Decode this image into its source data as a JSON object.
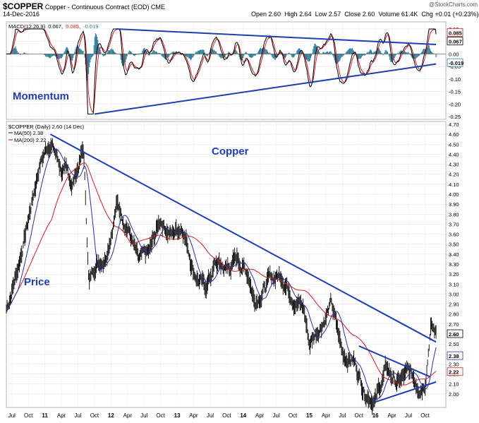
{
  "header": {
    "symbol": "$COPPER",
    "description": "Copper - Continuous Contract (EOD) CME",
    "date": "14-Dec-2016",
    "watermark": "@StockCharts.com",
    "open_label": "Open",
    "open": "2.60",
    "high_label": "High",
    "high": "2.64",
    "low_label": "Low",
    "low": "2.57",
    "close_label": "Close",
    "close": "2.60",
    "volume_label": "Volume",
    "volume": "61.4K",
    "chg_label": "Chg",
    "chg": "+0.01 (+0.23%)"
  },
  "colors": {
    "trendline": "#1f3fae",
    "ma50": "#2d2d9e",
    "ma200": "#cc1f1f",
    "macd": "#000000",
    "signal": "#cc1f1f",
    "hist": "#2f7f9a"
  },
  "chart_data": [
    {
      "type": "line",
      "title": "MACD(12,26,9) 0.067, 0.085, -0.019",
      "legend": {
        "label": "MACD(12,26,9)",
        "macd": "0.067",
        "signal": "0.085",
        "hist": "-0.019"
      },
      "annotation": "Momentum",
      "ylim": [
        -0.25,
        0.1
      ],
      "yticks": [
        "0.10",
        "0.05",
        "0.00",
        "-0.05",
        "-0.10",
        "-0.15",
        "-0.20",
        "-0.25"
      ],
      "last_value_labels": [
        "0.085",
        "0.067",
        "-0.019"
      ],
      "trendlines": [
        {
          "name": "upper",
          "from": [
            "2012-02",
            0.1
          ],
          "to": [
            "2016-12",
            0.038
          ]
        },
        {
          "name": "lower",
          "from": [
            "2011-10",
            -0.24
          ],
          "to": [
            "2016-12",
            -0.04
          ]
        }
      ]
    },
    {
      "type": "line",
      "title": "$COPPER (Daily) 2.60 (14 Dec)",
      "legend": [
        {
          "name": "$COPPER (Daily) 2.60 (14 Dec)"
        },
        {
          "name": "MA(50) 2.38"
        },
        {
          "name": "MA(200) 2.22"
        }
      ],
      "annotations": [
        "Copper",
        "Price"
      ],
      "ylim": [
        1.9,
        4.7
      ],
      "yticks": [
        "4.70",
        "4.60",
        "4.50",
        "4.40",
        "4.30",
        "4.20",
        "4.10",
        "4.00",
        "3.90",
        "3.80",
        "3.70",
        "3.60",
        "3.50",
        "3.40",
        "3.30",
        "3.20",
        "3.10",
        "3.00",
        "2.90",
        "2.80",
        "2.70",
        "2.60",
        "2.50",
        "2.40",
        "2.30",
        "2.20",
        "2.10",
        "2.00"
      ],
      "last_value_labels": [
        "2.60",
        "2.38",
        "2.22"
      ],
      "x_labels": [
        "Jul",
        "Oct",
        "11",
        "Apr",
        "Jul",
        "Oct",
        "12",
        "Apr",
        "Jul",
        "Oct",
        "13",
        "Apr",
        "Jul",
        "Oct",
        "14",
        "Apr",
        "Jul",
        "Oct",
        "15",
        "Apr",
        "Jul",
        "Oct",
        "16",
        "Apr",
        "Jul",
        "Oct"
      ],
      "price_anchors": [
        [
          "2010-06",
          2.85
        ],
        [
          "2010-08",
          3.25
        ],
        [
          "2010-10",
          3.75
        ],
        [
          "2010-12",
          4.3
        ],
        [
          "2011-02",
          4.55
        ],
        [
          "2011-04",
          4.25
        ],
        [
          "2011-06",
          4.1
        ],
        [
          "2011-08",
          4.45
        ],
        [
          "2011-09",
          3.1
        ],
        [
          "2011-10",
          3.3
        ],
        [
          "2011-12",
          3.4
        ],
        [
          "2012-02",
          3.9
        ],
        [
          "2012-04",
          3.7
        ],
        [
          "2012-06",
          3.3
        ],
        [
          "2012-08",
          3.4
        ],
        [
          "2012-10",
          3.75
        ],
        [
          "2012-12",
          3.6
        ],
        [
          "2013-02",
          3.7
        ],
        [
          "2013-04",
          3.25
        ],
        [
          "2013-06",
          3.05
        ],
        [
          "2013-08",
          3.3
        ],
        [
          "2013-10",
          3.25
        ],
        [
          "2013-12",
          3.35
        ],
        [
          "2014-02",
          3.2
        ],
        [
          "2014-03",
          2.95
        ],
        [
          "2014-06",
          3.15
        ],
        [
          "2014-08",
          3.2
        ],
        [
          "2014-10",
          3.0
        ],
        [
          "2014-12",
          2.85
        ],
        [
          "2015-01",
          2.5
        ],
        [
          "2015-03",
          2.7
        ],
        [
          "2015-05",
          2.9
        ],
        [
          "2015-07",
          2.4
        ],
        [
          "2015-09",
          2.35
        ],
        [
          "2015-11",
          2.05
        ],
        [
          "2016-01",
          1.95
        ],
        [
          "2016-03",
          2.25
        ],
        [
          "2016-05",
          2.1
        ],
        [
          "2016-07",
          2.2
        ],
        [
          "2016-09",
          2.1
        ],
        [
          "2016-10",
          2.15
        ],
        [
          "2016-11",
          2.7
        ],
        [
          "2016-12",
          2.6
        ]
      ],
      "trendlines": [
        {
          "name": "long-term resistance",
          "from": [
            "2011-02",
            4.6
          ],
          "to": [
            "2016-12",
            2.52
          ]
        },
        {
          "name": "wedge top",
          "from": [
            "2015-10",
            2.48
          ],
          "to": [
            "2016-11",
            2.17
          ]
        },
        {
          "name": "wedge bottom",
          "from": [
            "2016-01",
            1.92
          ],
          "to": [
            "2016-12",
            2.12
          ]
        }
      ]
    }
  ]
}
